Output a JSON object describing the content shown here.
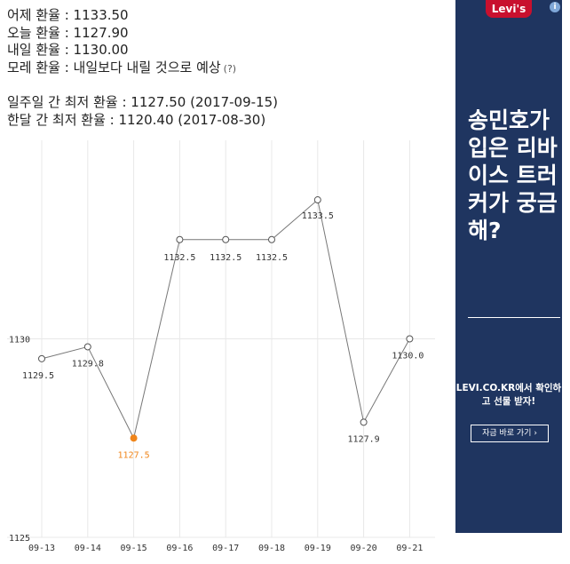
{
  "stats": {
    "yesterday": "어제 환율 : 1133.50",
    "today": "오늘 환율 : 1127.90",
    "tomorrow": "내일 환율 : 1130.00",
    "day_after": "모레 환율 : 내일보다 내릴 것으로 예상",
    "help": "(?)",
    "week_low": "일주일 간 최저 환율 : 1127.50 (2017-09-15)",
    "month_low": "한달 간 최저 환율 : 1120.40 (2017-08-30)"
  },
  "chart_data": {
    "type": "line",
    "categories": [
      "09-13",
      "09-14",
      "09-15",
      "09-16",
      "09-17",
      "09-18",
      "09-19",
      "09-20",
      "09-21"
    ],
    "values": [
      1129.5,
      1129.8,
      1127.5,
      1132.5,
      1132.5,
      1132.5,
      1133.5,
      1127.9,
      1130.0
    ],
    "value_labels": [
      "1129.5",
      "1129.8",
      "1127.5",
      "1132.5",
      "1132.5",
      "1132.5",
      "1133.5",
      "1127.9",
      "1130.0"
    ],
    "y_ticks": [
      "1125",
      "1130"
    ],
    "ylim": [
      1125,
      1135
    ],
    "highlight_index": 2,
    "grid": true,
    "colors": {
      "line": "#777777",
      "highlight": "#f0851a",
      "grid": "#e8e8e8",
      "label": "#333333"
    }
  },
  "ad": {
    "brand": "Levi's",
    "info_icon": "i",
    "headline": "송민호가 입은 리바이스 트러커가 궁금해?",
    "subtext": "LEVI.CO.KR에서 확인하고 선물 받자!",
    "cta": "자금 바로 가기 ›"
  }
}
